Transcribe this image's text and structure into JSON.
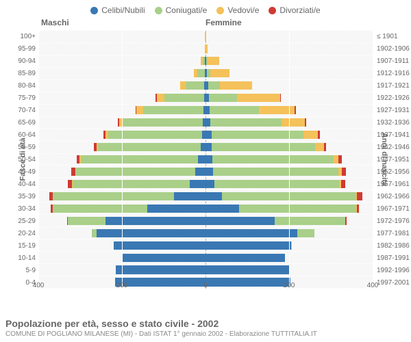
{
  "legend": [
    {
      "label": "Celibi/Nubili",
      "color": "#3a78b3"
    },
    {
      "label": "Coniugati/e",
      "color": "#a9cf89"
    },
    {
      "label": "Vedovi/e",
      "color": "#f4c15a"
    },
    {
      "label": "Divorziati/e",
      "color": "#cf3b33"
    }
  ],
  "headers": {
    "left": "Maschi",
    "right": "Femmine"
  },
  "axis_left_title": "Fasce di età",
  "axis_right_title": "Anni di nascita",
  "x_max": 400,
  "x_ticks_left": [
    400,
    200,
    0
  ],
  "x_ticks_right": [
    200,
    400
  ],
  "title": "Popolazione per età, sesso e stato civile - 2002",
  "subtitle": "COMUNE DI POGLIANO MILANESE (MI) - Dati ISTAT 1° gennaio 2002 - Elaborazione TUTTITALIA.IT",
  "grid_color": "#ffffff",
  "background_color": "#f7f7f7",
  "rows": [
    {
      "age": "100+",
      "birth": "≤ 1901",
      "m": {
        "c": 0,
        "co": 0,
        "v": 1,
        "d": 0
      },
      "f": {
        "c": 0,
        "co": 0,
        "v": 2,
        "d": 0
      }
    },
    {
      "age": "95-99",
      "birth": "1902-1906",
      "m": {
        "c": 0,
        "co": 0,
        "v": 1,
        "d": 0
      },
      "f": {
        "c": 0,
        "co": 0,
        "v": 5,
        "d": 0
      }
    },
    {
      "age": "90-94",
      "birth": "1907-1911",
      "m": {
        "c": 2,
        "co": 4,
        "v": 5,
        "d": 0
      },
      "f": {
        "c": 2,
        "co": 3,
        "v": 27,
        "d": 0
      }
    },
    {
      "age": "85-89",
      "birth": "1912-1916",
      "m": {
        "c": 2,
        "co": 18,
        "v": 8,
        "d": 0
      },
      "f": {
        "c": 4,
        "co": 8,
        "v": 45,
        "d": 0
      }
    },
    {
      "age": "80-84",
      "birth": "1917-1921",
      "m": {
        "c": 3,
        "co": 45,
        "v": 12,
        "d": 0
      },
      "f": {
        "c": 6,
        "co": 28,
        "v": 78,
        "d": 0
      }
    },
    {
      "age": "75-79",
      "birth": "1922-1926",
      "m": {
        "c": 4,
        "co": 95,
        "v": 18,
        "d": 2
      },
      "f": {
        "c": 8,
        "co": 68,
        "v": 102,
        "d": 2
      }
    },
    {
      "age": "70-74",
      "birth": "1927-1931",
      "m": {
        "c": 5,
        "co": 145,
        "v": 15,
        "d": 3
      },
      "f": {
        "c": 10,
        "co": 118,
        "v": 85,
        "d": 3
      }
    },
    {
      "age": "65-69",
      "birth": "1932-1936",
      "m": {
        "c": 6,
        "co": 190,
        "v": 10,
        "d": 4
      },
      "f": {
        "c": 12,
        "co": 170,
        "v": 55,
        "d": 4
      }
    },
    {
      "age": "60-64",
      "birth": "1937-1941",
      "m": {
        "c": 8,
        "co": 225,
        "v": 6,
        "d": 5
      },
      "f": {
        "c": 14,
        "co": 220,
        "v": 35,
        "d": 5
      }
    },
    {
      "age": "55-59",
      "birth": "1942-1946",
      "m": {
        "c": 12,
        "co": 245,
        "v": 4,
        "d": 6
      },
      "f": {
        "c": 15,
        "co": 248,
        "v": 20,
        "d": 6
      }
    },
    {
      "age": "50-54",
      "birth": "1947-1951",
      "m": {
        "c": 18,
        "co": 280,
        "v": 3,
        "d": 8
      },
      "f": {
        "c": 16,
        "co": 290,
        "v": 12,
        "d": 8
      }
    },
    {
      "age": "45-49",
      "birth": "1952-1956",
      "m": {
        "c": 25,
        "co": 285,
        "v": 2,
        "d": 10
      },
      "f": {
        "c": 18,
        "co": 300,
        "v": 8,
        "d": 10
      }
    },
    {
      "age": "40-44",
      "birth": "1957-1961",
      "m": {
        "c": 38,
        "co": 280,
        "v": 1,
        "d": 10
      },
      "f": {
        "c": 22,
        "co": 298,
        "v": 5,
        "d": 10
      }
    },
    {
      "age": "35-39",
      "birth": "1962-1966",
      "m": {
        "c": 75,
        "co": 290,
        "v": 1,
        "d": 8
      },
      "f": {
        "c": 40,
        "co": 320,
        "v": 3,
        "d": 12
      }
    },
    {
      "age": "30-34",
      "birth": "1967-1971",
      "m": {
        "c": 140,
        "co": 225,
        "v": 0,
        "d": 5
      },
      "f": {
        "c": 80,
        "co": 280,
        "v": 2,
        "d": 6
      }
    },
    {
      "age": "25-29",
      "birth": "1972-1976",
      "m": {
        "c": 240,
        "co": 90,
        "v": 0,
        "d": 2
      },
      "f": {
        "c": 165,
        "co": 170,
        "v": 0,
        "d": 3
      }
    },
    {
      "age": "20-24",
      "birth": "1977-1981",
      "m": {
        "c": 260,
        "co": 12,
        "v": 0,
        "d": 0
      },
      "f": {
        "c": 220,
        "co": 40,
        "v": 0,
        "d": 0
      }
    },
    {
      "age": "15-19",
      "birth": "1982-1986",
      "m": {
        "c": 220,
        "co": 0,
        "v": 0,
        "d": 0
      },
      "f": {
        "c": 205,
        "co": 2,
        "v": 0,
        "d": 0
      }
    },
    {
      "age": "10-14",
      "birth": "1987-1991",
      "m": {
        "c": 200,
        "co": 0,
        "v": 0,
        "d": 0
      },
      "f": {
        "c": 190,
        "co": 0,
        "v": 0,
        "d": 0
      }
    },
    {
      "age": "5-9",
      "birth": "1992-1996",
      "m": {
        "c": 215,
        "co": 0,
        "v": 0,
        "d": 0
      },
      "f": {
        "c": 200,
        "co": 0,
        "v": 0,
        "d": 0
      }
    },
    {
      "age": "0-4",
      "birth": "1997-2001",
      "m": {
        "c": 216,
        "co": 0,
        "v": 0,
        "d": 0
      },
      "f": {
        "c": 204,
        "co": 0,
        "v": 0,
        "d": 0
      }
    }
  ]
}
